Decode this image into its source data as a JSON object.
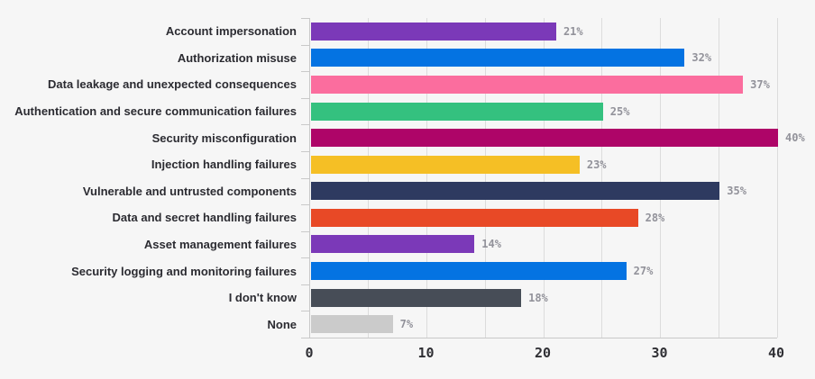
{
  "chart_data": {
    "type": "bar",
    "orientation": "horizontal",
    "title": "",
    "xlabel": "",
    "ylabel": "",
    "categories": [
      "Account impersonation",
      "Authorization misuse",
      "Data leakage and unexpected consequences",
      "Authentication and secure communication failures",
      "Security misconfiguration",
      "Injection handling failures",
      "Vulnerable and untrusted components",
      "Data and secret handling failures",
      "Asset management failures",
      "Security logging and monitoring failures",
      "I don't know",
      "None"
    ],
    "values": [
      21,
      32,
      37,
      25,
      40,
      23,
      35,
      28,
      14,
      27,
      18,
      7
    ],
    "value_labels": [
      "21%",
      "32%",
      "37%",
      "25%",
      "40%",
      "23%",
      "35%",
      "28%",
      "14%",
      "27%",
      "18%",
      "7%"
    ],
    "bar_colors": [
      "#7b39b8",
      "#0473e2",
      "#fb6d9e",
      "#34c17f",
      "#ae0568",
      "#f5bf25",
      "#2e3a60",
      "#e84926",
      "#7b39b8",
      "#0473e2",
      "#474d57",
      "#cbcbcb"
    ],
    "xlim": [
      0,
      40
    ],
    "x_ticks": [
      "0",
      "10",
      "20",
      "30",
      "40"
    ],
    "gridline_step": 5,
    "grid": true,
    "legend": false
  },
  "colors": {
    "background": "#f6f6f6",
    "gridline": "#dcdcdc",
    "axis_line": "#c9c9c9",
    "category_label_text": "#2b2b31",
    "value_label_text": "#92929a",
    "tick_label_text": "#2f2f34"
  }
}
